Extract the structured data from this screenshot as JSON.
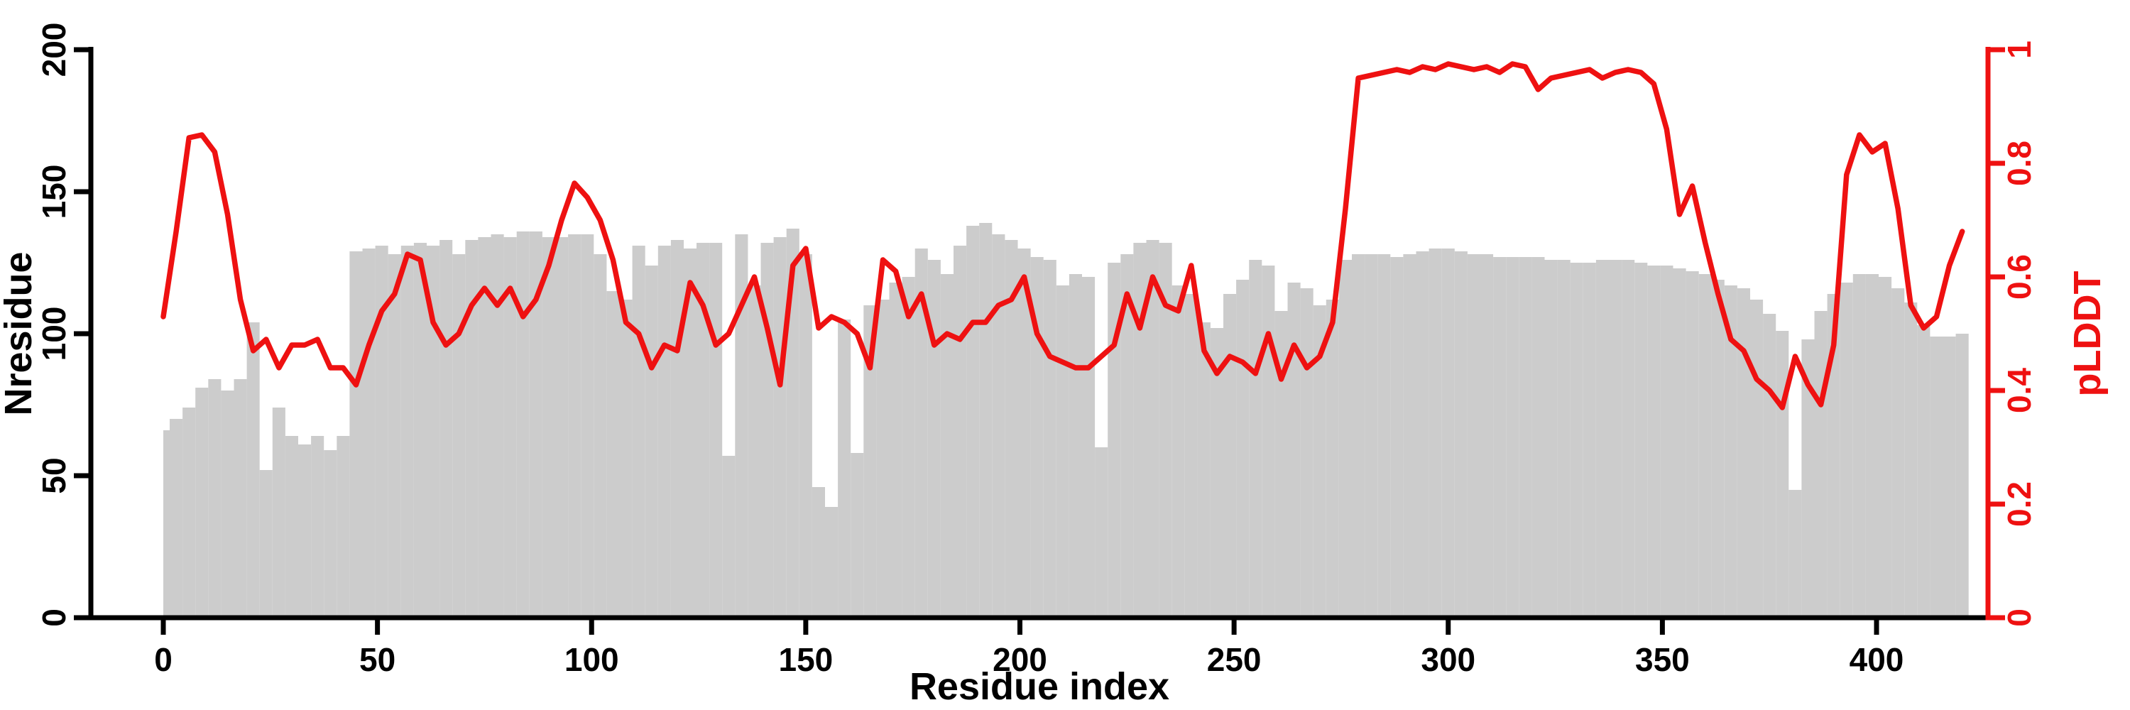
{
  "figure": {
    "background_color": "#ffffff",
    "bar_color": "#cccccc",
    "line_color": "#ee1111",
    "axis_color": "#000000",
    "right_axis_color": "#ee1111"
  },
  "chart_data": {
    "type": "bar",
    "subtype": "bar-plus-line-dual-axis",
    "title": "",
    "xlabel": "Residue index",
    "ylabel_left": "Nresidue",
    "ylabel_right": "pLDDT",
    "x_ticks": [
      0,
      50,
      100,
      150,
      200,
      250,
      300,
      350,
      400
    ],
    "y_left_ticks": [
      0,
      50,
      100,
      150,
      200
    ],
    "y_right_ticks": [
      0,
      0.2,
      0.4,
      0.6,
      0.8,
      1
    ],
    "xlim": [
      0,
      421
    ],
    "ylim_left": [
      0,
      200
    ],
    "ylim_right": [
      0,
      1
    ],
    "grid": false,
    "legend": false,
    "x": [
      0,
      3,
      6,
      9,
      12,
      15,
      18,
      21,
      24,
      27,
      30,
      33,
      36,
      39,
      42,
      45,
      48,
      51,
      54,
      57,
      60,
      63,
      66,
      69,
      72,
      75,
      78,
      81,
      84,
      87,
      90,
      93,
      96,
      99,
      102,
      105,
      108,
      111,
      114,
      117,
      120,
      123,
      126,
      129,
      132,
      135,
      138,
      141,
      144,
      147,
      150,
      153,
      156,
      159,
      162,
      165,
      168,
      171,
      174,
      177,
      180,
      183,
      186,
      189,
      192,
      195,
      198,
      201,
      204,
      207,
      210,
      213,
      216,
      219,
      222,
      225,
      228,
      231,
      234,
      237,
      240,
      243,
      246,
      249,
      252,
      255,
      258,
      261,
      264,
      267,
      270,
      273,
      276,
      279,
      282,
      285,
      288,
      291,
      294,
      297,
      300,
      303,
      306,
      309,
      312,
      315,
      318,
      321,
      324,
      327,
      330,
      333,
      336,
      339,
      342,
      345,
      348,
      351,
      354,
      357,
      360,
      363,
      366,
      369,
      372,
      375,
      378,
      381,
      384,
      387,
      390,
      393,
      396,
      399,
      402,
      405,
      408,
      411,
      414,
      417,
      420
    ],
    "series": [
      {
        "name": "Nresidue",
        "type": "bar",
        "axis": "left",
        "color": "#cccccc",
        "values": [
          66,
          70,
          74,
          81,
          84,
          80,
          84,
          104,
          52,
          74,
          64,
          61,
          64,
          59,
          64,
          129,
          130,
          131,
          128,
          131,
          132,
          131,
          133,
          128,
          133,
          134,
          135,
          134,
          136,
          136,
          134,
          134,
          135,
          135,
          128,
          115,
          112,
          131,
          124,
          131,
          133,
          130,
          132,
          132,
          57,
          135,
          117,
          132,
          134,
          137,
          128,
          46,
          39,
          105,
          58,
          110,
          112,
          118,
          120,
          130,
          126,
          121,
          131,
          138,
          139,
          135,
          133,
          130,
          127,
          126,
          117,
          121,
          120,
          60,
          125,
          128,
          132,
          133,
          132,
          117,
          114,
          104,
          102,
          114,
          119,
          126,
          124,
          108,
          118,
          116,
          110,
          112,
          126,
          128,
          128,
          128,
          127,
          128,
          129,
          130,
          130,
          129,
          128,
          128,
          127,
          127,
          127,
          127,
          126,
          126,
          125,
          125,
          126,
          126,
          126,
          125,
          124,
          124,
          123,
          122,
          121,
          119,
          117,
          116,
          112,
          107,
          101,
          45,
          98,
          108,
          114,
          118,
          121,
          121,
          120,
          116,
          111,
          103,
          99,
          99,
          100
        ]
      },
      {
        "name": "pLDDT",
        "type": "line",
        "axis": "right",
        "color": "#ee1111",
        "values": [
          0.53,
          0.68,
          0.845,
          0.85,
          0.82,
          0.71,
          0.56,
          0.47,
          0.49,
          0.44,
          0.48,
          0.48,
          0.49,
          0.44,
          0.44,
          0.41,
          0.48,
          0.54,
          0.57,
          0.64,
          0.63,
          0.52,
          0.48,
          0.5,
          0.55,
          0.58,
          0.55,
          0.58,
          0.53,
          0.56,
          0.62,
          0.7,
          0.765,
          0.74,
          0.7,
          0.63,
          0.52,
          0.5,
          0.44,
          0.48,
          0.47,
          0.59,
          0.55,
          0.48,
          0.5,
          0.55,
          0.6,
          0.51,
          0.41,
          0.62,
          0.65,
          0.51,
          0.53,
          0.52,
          0.5,
          0.44,
          0.63,
          0.61,
          0.53,
          0.57,
          0.48,
          0.5,
          0.49,
          0.52,
          0.52,
          0.55,
          0.56,
          0.6,
          0.5,
          0.46,
          0.45,
          0.44,
          0.44,
          0.46,
          0.48,
          0.57,
          0.51,
          0.6,
          0.55,
          0.54,
          0.62,
          0.47,
          0.43,
          0.46,
          0.45,
          0.43,
          0.5,
          0.42,
          0.48,
          0.44,
          0.46,
          0.52,
          0.72,
          0.95,
          0.955,
          0.96,
          0.965,
          0.96,
          0.97,
          0.965,
          0.975,
          0.97,
          0.965,
          0.97,
          0.96,
          0.975,
          0.97,
          0.93,
          0.95,
          0.955,
          0.96,
          0.965,
          0.95,
          0.96,
          0.965,
          0.96,
          0.94,
          0.86,
          0.71,
          0.76,
          0.66,
          0.57,
          0.49,
          0.47,
          0.42,
          0.4,
          0.37,
          0.46,
          0.41,
          0.375,
          0.48,
          0.78,
          0.85,
          0.82,
          0.835,
          0.72,
          0.55,
          0.51,
          0.53,
          0.62,
          0.68
        ]
      }
    ]
  }
}
